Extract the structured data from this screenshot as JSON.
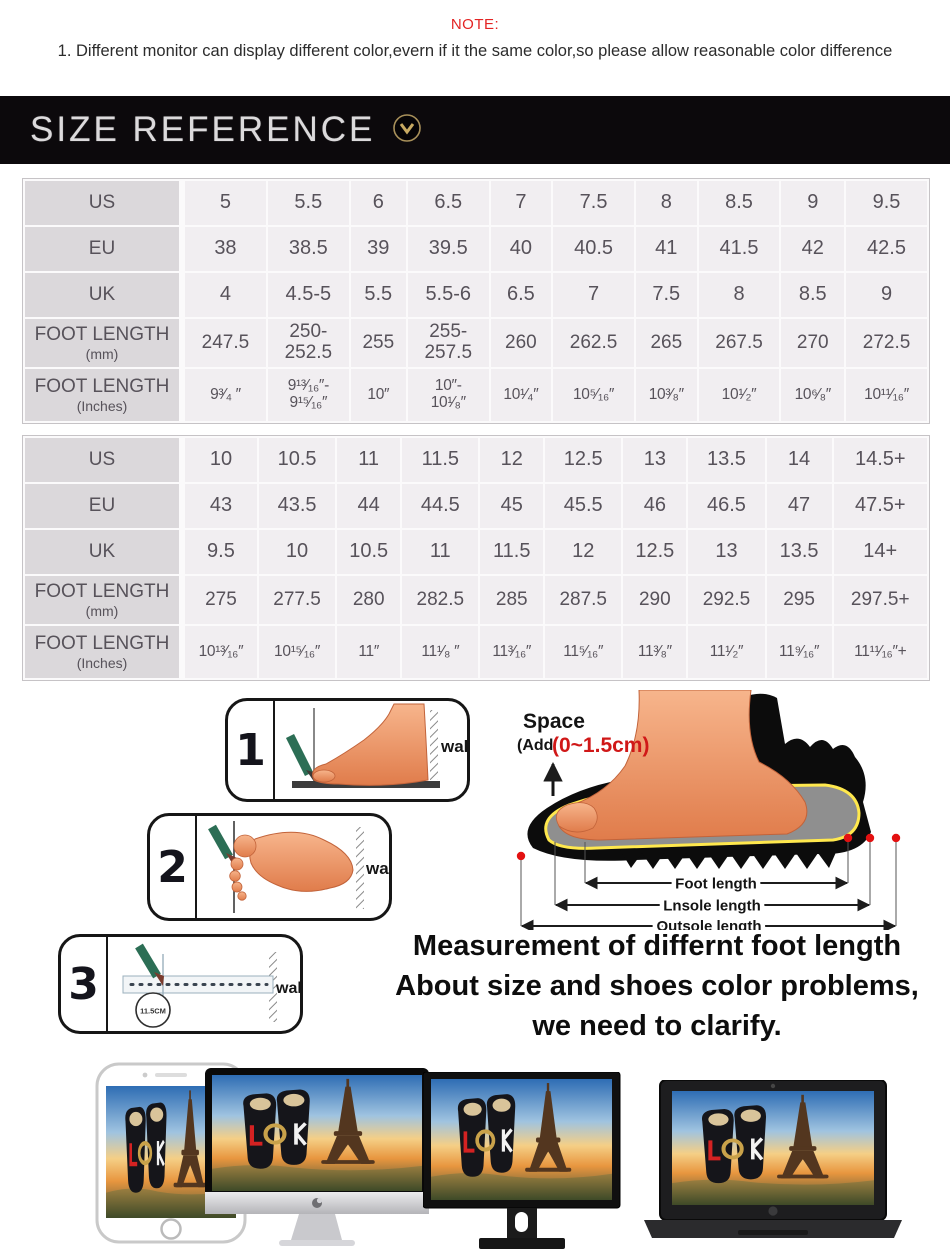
{
  "note": {
    "title": "NOTE:",
    "line1": "1. Different monitor can display different color,evern if it the same color,so please allow reasonable color difference"
  },
  "banner": {
    "title": "SIZE REFERENCE"
  },
  "size_tables": [
    {
      "rows": [
        {
          "label": "US",
          "values": [
            "5",
            "5.5",
            "6",
            "6.5",
            "7",
            "7.5",
            "8",
            "8.5",
            "9",
            "9.5"
          ]
        },
        {
          "label": "EU",
          "values": [
            "38",
            "38.5",
            "39",
            "39.5",
            "40",
            "40.5",
            "41",
            "41.5",
            "42",
            "42.5"
          ]
        },
        {
          "label": "UK",
          "values": [
            "4",
            "4.5-5",
            "5.5",
            "5.5-6",
            "6.5",
            "7",
            "7.5",
            "8",
            "8.5",
            "9"
          ]
        },
        {
          "label": "FOOT LENGTH",
          "sublabel": "(mm)",
          "kind": "mm",
          "values": [
            "247.5",
            "250-\n252.5",
            "255",
            "255-\n257.5",
            "260",
            "262.5",
            "265",
            "267.5",
            "270",
            "272.5"
          ]
        },
        {
          "label": "FOOT LENGTH",
          "sublabel": "(Inches)",
          "kind": "inches",
          "values": [
            "9³⁄₄ ″",
            "9¹³⁄₁₆″-\n9¹⁵⁄₁₆″",
            "10″",
            "10″-\n10¹⁄₈″",
            "10¹⁄₄″",
            "10⁵⁄₁₆″",
            "10³⁄₈″",
            "10¹⁄₂″",
            "10⁶⁄₈″",
            "10¹¹⁄₁₆″"
          ]
        }
      ]
    },
    {
      "rows": [
        {
          "label": "US",
          "values": [
            "10",
            "10.5",
            "11",
            "11.5",
            "12",
            "12.5",
            "13",
            "13.5",
            "14",
            "14.5+"
          ]
        },
        {
          "label": "EU",
          "values": [
            "43",
            "43.5",
            "44",
            "44.5",
            "45",
            "45.5",
            "46",
            "46.5",
            "47",
            "47.5+"
          ]
        },
        {
          "label": "UK",
          "values": [
            "9.5",
            "10",
            "10.5",
            "11",
            "11.5",
            "12",
            "12.5",
            "13",
            "13.5",
            "14+"
          ]
        },
        {
          "label": "FOOT LENGTH",
          "sublabel": "(mm)",
          "kind": "mm",
          "values": [
            "275",
            "277.5",
            "280",
            "282.5",
            "285",
            "287.5",
            "290",
            "292.5",
            "295",
            "297.5+"
          ]
        },
        {
          "label": "FOOT LENGTH",
          "sublabel": "(Inches)",
          "kind": "inches",
          "values": [
            "10¹³⁄₁₆″",
            "10¹⁵⁄₁₆″",
            "11″",
            "11¹⁄₈ ″",
            "11³⁄₁₆″",
            "11⁵⁄₁₆″",
            "11³⁄₈″",
            "11¹⁄₂″",
            "11⁹⁄₁₆″",
            "11¹¹⁄₁₆″+"
          ]
        }
      ]
    }
  ],
  "steps": [
    {
      "number": "1",
      "wall": "wall"
    },
    {
      "number": "2",
      "wall": "wall"
    },
    {
      "number": "3",
      "wall": "wall",
      "ruler": "11.5CM"
    }
  ],
  "foot_diagram": {
    "space": "Space",
    "add_prefix": "(Add",
    "add_value": "(0~1.5cm)",
    "dim_foot": "Foot length",
    "dim_insole": "Lnsole length",
    "dim_outsole": "Outsole length"
  },
  "captions": {
    "line1": "Measurement of differnt foot length",
    "line2": "About size and shoes color problems,",
    "line3": "we need to clarify."
  },
  "colors": {
    "note_red": "#e32424",
    "banner_bg": "#0c090c",
    "banner_gold": "#c2a45e",
    "table_cell_bg": "#f1eef1",
    "table_header_bg": "#dbd8db",
    "accent_red": "#d42222",
    "foot_skin": "#f3a377"
  }
}
